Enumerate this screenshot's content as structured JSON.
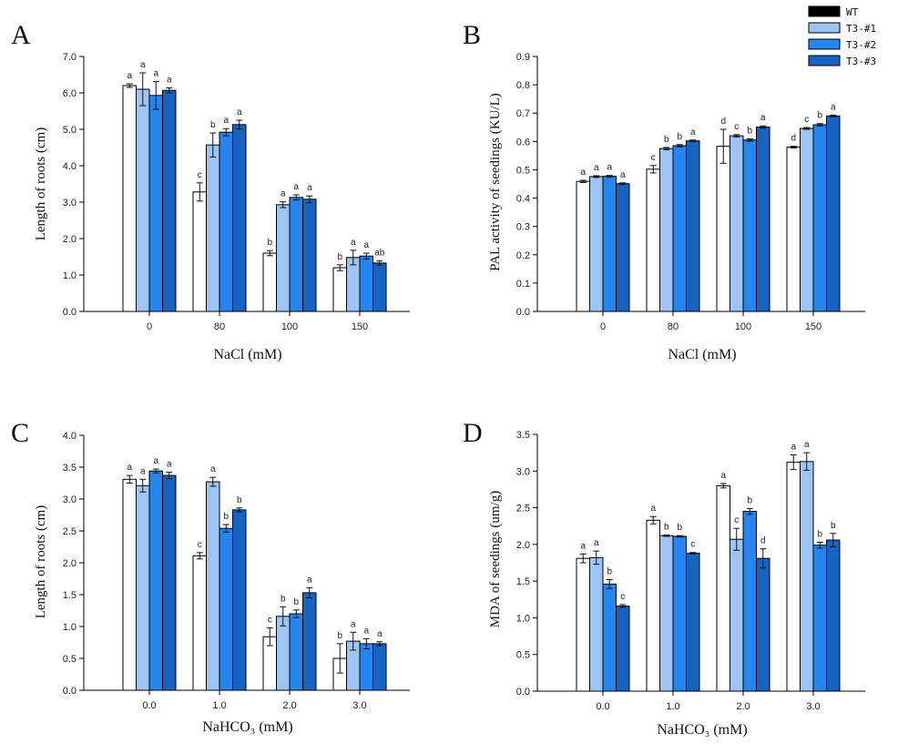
{
  "legend": [
    {
      "name": "WT",
      "fill": "#000000"
    },
    {
      "name": "T3-#1",
      "fill": "#9cc5f3"
    },
    {
      "name": "T3-#2",
      "fill": "#2586ef"
    },
    {
      "name": "T3-#3",
      "fill": "#1763c1"
    }
  ],
  "bar_fills": [
    "#ffffff",
    "#9cc5f3",
    "#2586ef",
    "#1763c1"
  ],
  "chart_data": [
    {
      "panel": "A",
      "type": "bar",
      "xlabel": "NaCl (mM)",
      "ylabel": "Length of roots (cm)",
      "categories": [
        "0",
        "80",
        "100",
        "150"
      ],
      "ylim": [
        0,
        7
      ],
      "yticks": [
        "0.0",
        "1.0",
        "2.0",
        "3.0",
        "4.0",
        "5.0",
        "6.0",
        "7.0"
      ],
      "series": [
        {
          "name": "WT",
          "values": [
            6.2,
            3.28,
            1.6,
            1.2
          ],
          "errors": [
            0.05,
            0.25,
            0.07,
            0.08
          ],
          "letters": [
            "a",
            "c",
            "b",
            "b"
          ]
        },
        {
          "name": "T3-#1",
          "values": [
            6.1,
            4.57,
            2.93,
            1.48
          ],
          "errors": [
            0.45,
            0.33,
            0.08,
            0.2
          ],
          "letters": [
            "a",
            "b",
            "a",
            "a"
          ]
        },
        {
          "name": "T3-#2",
          "values": [
            5.93,
            4.92,
            3.13,
            1.52
          ],
          "errors": [
            0.38,
            0.1,
            0.07,
            0.08
          ],
          "letters": [
            "a",
            "a",
            "a",
            "a"
          ]
        },
        {
          "name": "T3-#3",
          "values": [
            6.07,
            5.13,
            3.08,
            1.33
          ],
          "errors": [
            0.07,
            0.12,
            0.09,
            0.06
          ],
          "letters": [
            "a",
            "a",
            "a",
            "ab"
          ]
        }
      ]
    },
    {
      "panel": "B",
      "type": "bar",
      "xlabel": "NaCl (mM)",
      "ylabel": "PAL activity of seedings (KU/L)",
      "categories": [
        "0",
        "80",
        "100",
        "150"
      ],
      "ylim": [
        0,
        0.9
      ],
      "yticks": [
        "0.0",
        "0.1",
        "0.2",
        "0.3",
        "0.4",
        "0.5",
        "0.6",
        "0.7",
        "0.8",
        "0.9"
      ],
      "series": [
        {
          "name": "WT",
          "values": [
            0.459,
            0.502,
            0.583,
            0.58
          ],
          "errors": [
            0.004,
            0.013,
            0.06,
            0.003
          ],
          "letters": [
            "a",
            "c",
            "d",
            "d"
          ]
        },
        {
          "name": "T3-#1",
          "values": [
            0.476,
            0.575,
            0.62,
            0.646
          ],
          "errors": [
            0.003,
            0.004,
            0.004,
            0.003
          ],
          "letters": [
            "a",
            "b",
            "c",
            "c"
          ]
        },
        {
          "name": "T3-#2",
          "values": [
            0.477,
            0.585,
            0.605,
            0.659
          ],
          "errors": [
            0.003,
            0.004,
            0.004,
            0.004
          ],
          "letters": [
            "a",
            "b",
            "b",
            "b"
          ]
        },
        {
          "name": "T3-#3",
          "values": [
            0.451,
            0.602,
            0.651,
            0.69
          ],
          "errors": [
            0.003,
            0.003,
            0.004,
            0.003
          ],
          "letters": [
            "a",
            "a",
            "a",
            "a"
          ]
        }
      ]
    },
    {
      "panel": "C",
      "type": "bar",
      "xlabel": "NaHCO₃ (mM)",
      "ylabel": "Length of roots (cm)",
      "categories": [
        "0.0",
        "1.0",
        "2.0",
        "3.0"
      ],
      "ylim": [
        0,
        4
      ],
      "yticks": [
        "0.0",
        "0.5",
        "1.0",
        "1.5",
        "2.0",
        "2.5",
        "3.0",
        "3.5",
        "4.0"
      ],
      "series": [
        {
          "name": "WT",
          "values": [
            3.31,
            2.11,
            0.84,
            0.5
          ],
          "errors": [
            0.06,
            0.05,
            0.14,
            0.23
          ],
          "letters": [
            "a",
            "c",
            "c",
            "b"
          ]
        },
        {
          "name": "T3-#1",
          "values": [
            3.21,
            3.27,
            1.16,
            0.77
          ],
          "errors": [
            0.1,
            0.07,
            0.15,
            0.14
          ],
          "letters": [
            "a",
            "a",
            "b",
            "a"
          ]
        },
        {
          "name": "T3-#2",
          "values": [
            3.44,
            2.54,
            1.2,
            0.73
          ],
          "errors": [
            0.03,
            0.06,
            0.06,
            0.08
          ],
          "letters": [
            "a",
            "b",
            "b",
            "a"
          ]
        },
        {
          "name": "T3-#3",
          "values": [
            3.37,
            2.83,
            1.53,
            0.73
          ],
          "errors": [
            0.05,
            0.03,
            0.08,
            0.03
          ],
          "letters": [
            "a",
            "b",
            "a",
            "a"
          ]
        }
      ]
    },
    {
      "panel": "D",
      "type": "bar",
      "xlabel": "NaHCO₃ (mM)",
      "ylabel": "MDA of seedings (um/g)",
      "categories": [
        "0.0",
        "1.0",
        "2.0",
        "3.0"
      ],
      "ylim": [
        0,
        3.5
      ],
      "yticks": [
        "0.0",
        "0.5",
        "1.0",
        "1.5",
        "2.0",
        "2.5",
        "3.0",
        "3.5"
      ],
      "series": [
        {
          "name": "WT",
          "values": [
            1.81,
            2.33,
            2.8,
            3.12
          ],
          "errors": [
            0.06,
            0.05,
            0.03,
            0.1
          ],
          "letters": [
            "a",
            "a",
            "a",
            "a"
          ]
        },
        {
          "name": "T3-#1",
          "values": [
            1.82,
            2.12,
            2.07,
            3.13
          ],
          "errors": [
            0.09,
            0.01,
            0.15,
            0.12
          ],
          "letters": [
            "a",
            "b",
            "c",
            "a"
          ]
        },
        {
          "name": "T3-#2",
          "values": [
            1.46,
            2.11,
            2.45,
            1.99
          ],
          "errors": [
            0.06,
            0.01,
            0.04,
            0.04
          ],
          "letters": [
            "b",
            "b",
            "b",
            "b"
          ]
        },
        {
          "name": "T3-#3",
          "values": [
            1.16,
            1.88,
            1.81,
            2.06
          ],
          "errors": [
            0.02,
            0.01,
            0.13,
            0.09
          ],
          "letters": [
            "c",
            "c",
            "d",
            "b"
          ]
        }
      ]
    }
  ]
}
